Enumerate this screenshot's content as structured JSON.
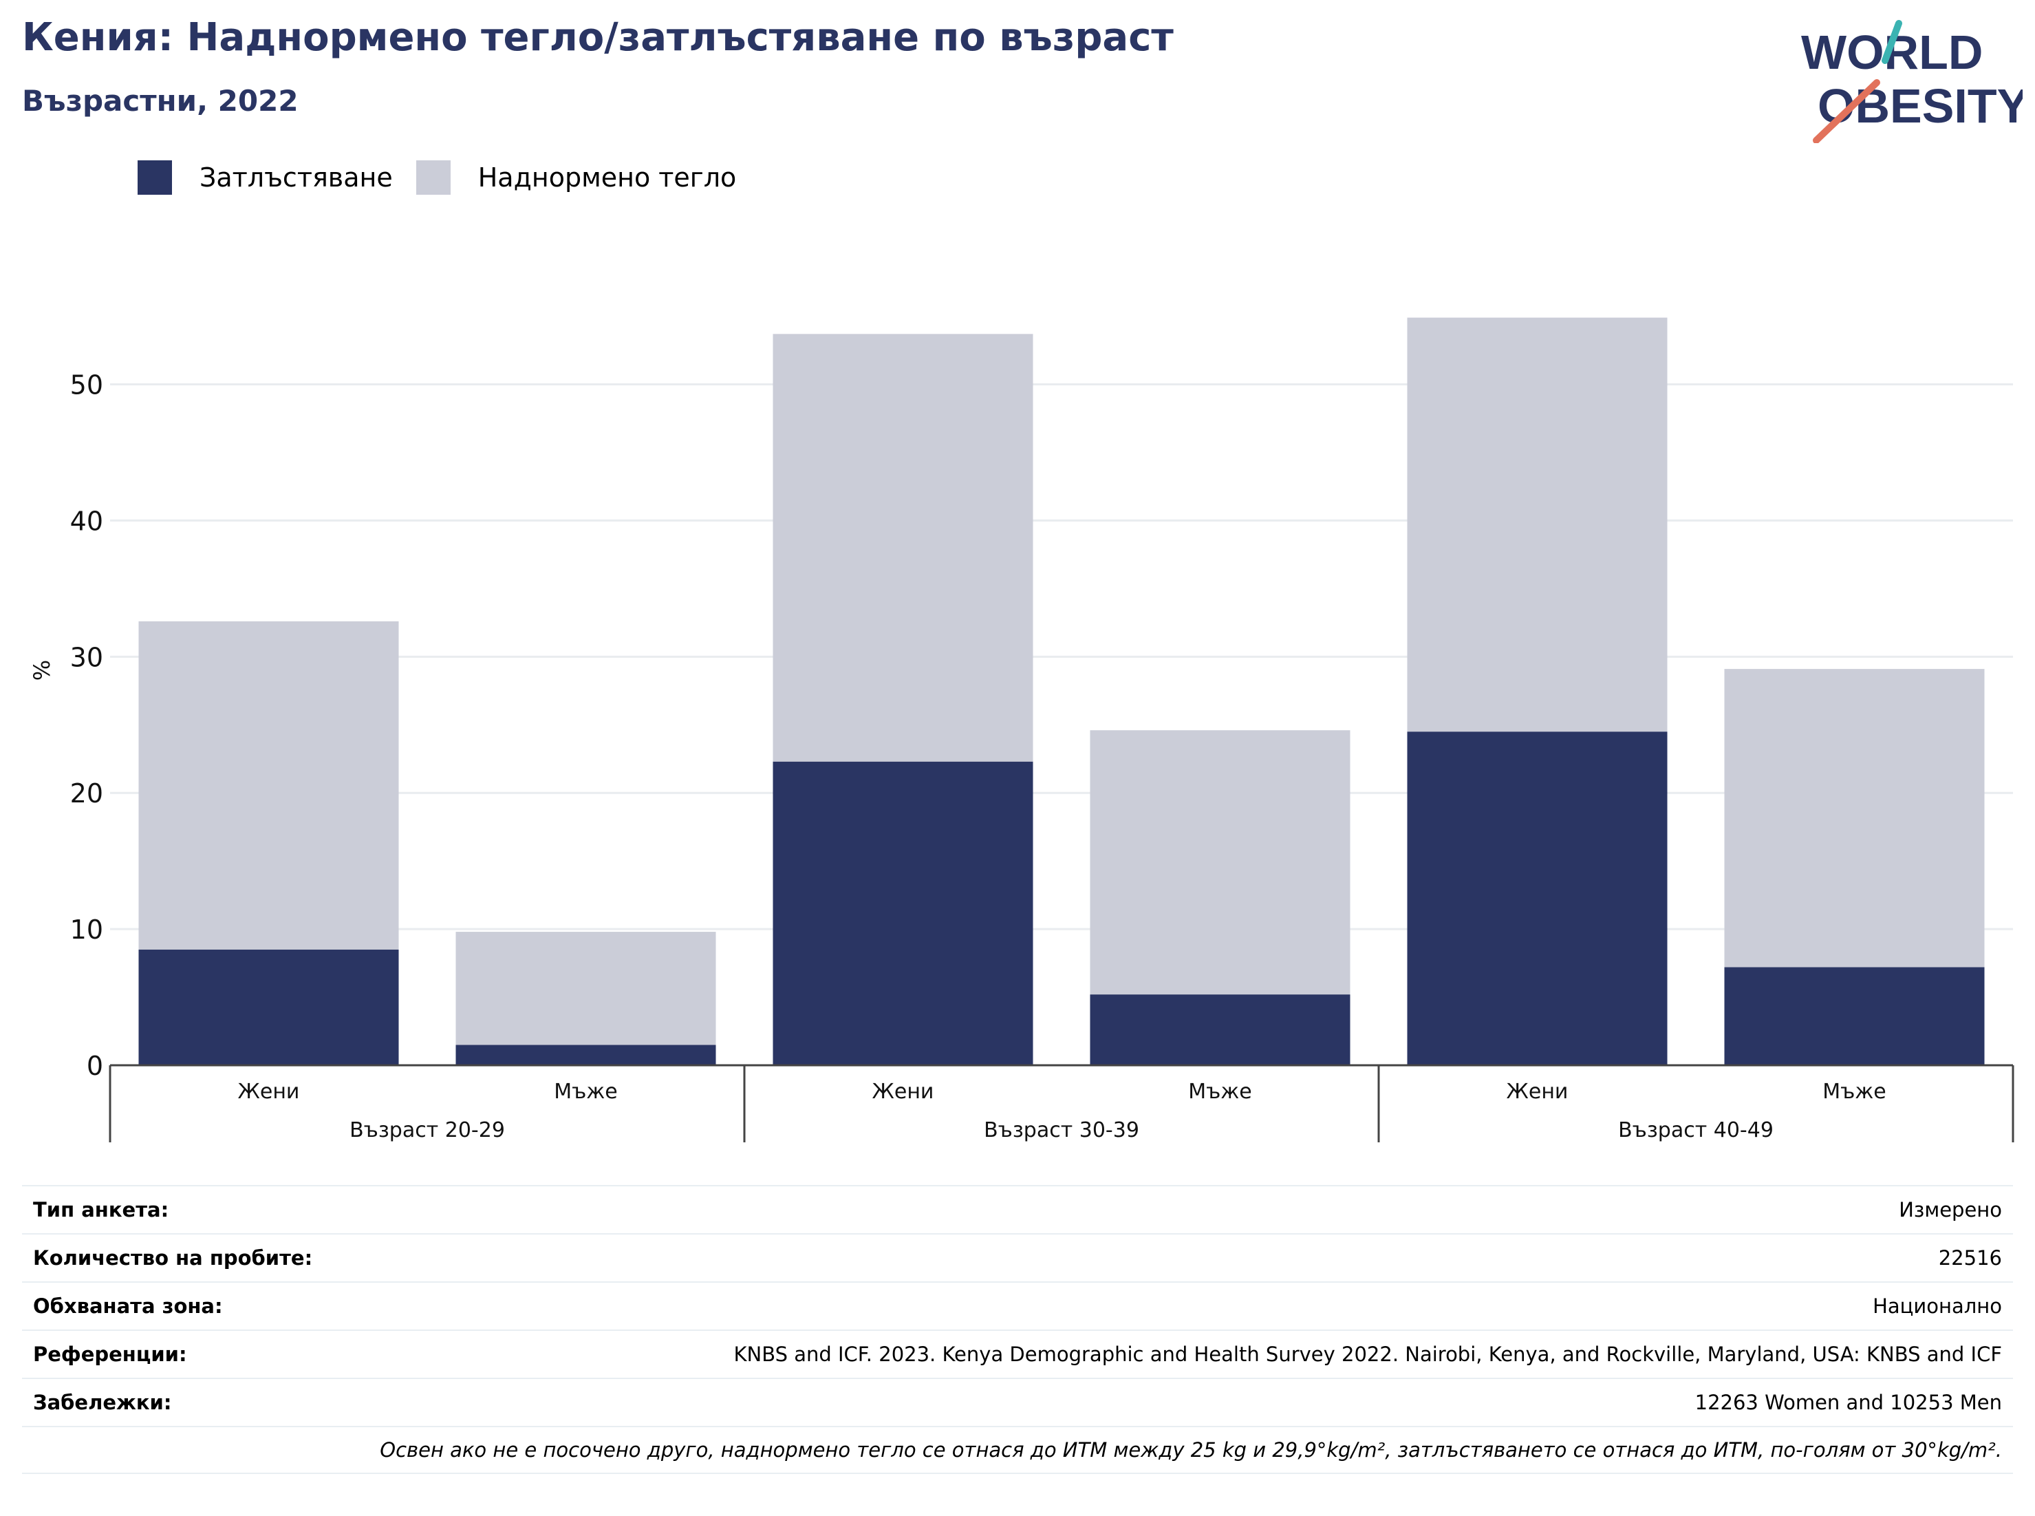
{
  "header": {
    "title": "Кения: Наднормено тегло/затлъстяване по възраст",
    "subtitle": "Възрастни, 2022"
  },
  "logo": {
    "line1": "WORLD",
    "line2": "OBESITY",
    "colors": [
      "#2a3563",
      "#e2725b",
      "#3bb3b2"
    ]
  },
  "chart_data": {
    "type": "bar",
    "stacked": true,
    "ylabel": "%",
    "ylim": [
      0,
      57
    ],
    "yticks": [
      0,
      10,
      20,
      30,
      40,
      50
    ],
    "grid": true,
    "legend_position": "top-left",
    "categories": [
      "Жени",
      "Мъже",
      "Жени",
      "Мъже",
      "Жени",
      "Мъже"
    ],
    "groups": [
      {
        "label": "Възраст 20-29",
        "span": [
          0,
          1
        ]
      },
      {
        "label": "Възраст 30-39",
        "span": [
          2,
          3
        ]
      },
      {
        "label": "Възраст 40-49",
        "span": [
          4,
          5
        ]
      }
    ],
    "series": [
      {
        "name": "Затлъстяване",
        "color": "#2a3563",
        "values": [
          8.5,
          1.5,
          22.3,
          5.2,
          24.5,
          7.2
        ]
      },
      {
        "name": "Наднормено тегло",
        "color": "#cbcdd8",
        "values": [
          24.1,
          8.3,
          31.4,
          19.4,
          30.4,
          21.9
        ]
      }
    ]
  },
  "info_table": {
    "rows": [
      {
        "label": "Тип анкета:",
        "value": "Измерено"
      },
      {
        "label": "Количество на пробите:",
        "value": "22516"
      },
      {
        "label": "Обхваната зона:",
        "value": "Национално"
      },
      {
        "label": "Референции:",
        "value": "KNBS and ICF. 2023. Kenya Demographic and Health Survey 2022. Nairobi, Kenya, and Rockville, Maryland, USA: KNBS and ICF"
      },
      {
        "label": "Забележки:",
        "value": "12263 Women and 10253 Men"
      }
    ],
    "footnote": "Освен ако не е посочено друго, наднормено тегло се отнася до ИТМ между 25 kg и 29,9°kg/m², затлъстяването се отнася до ИТМ, по-голям от 30°kg/m²."
  }
}
